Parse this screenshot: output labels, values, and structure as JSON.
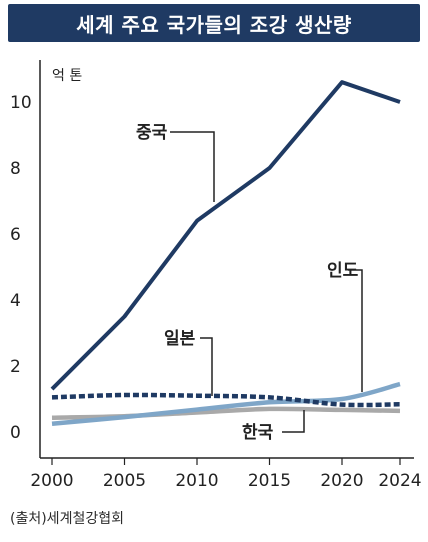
{
  "chart_data": {
    "type": "line",
    "title": "세계 주요 국가들의 조강 생산량",
    "unit_label": "억 톤",
    "x": [
      2000,
      2005,
      2010,
      2015,
      2020,
      2024
    ],
    "xticks": [
      "2000",
      "2005",
      "2010",
      "2015",
      "2020",
      "2024"
    ],
    "yticks": [
      "0",
      "2",
      "4",
      "6",
      "8",
      "10"
    ],
    "xlim": [
      2000,
      2024
    ],
    "ylim": [
      0,
      11
    ],
    "grid": false,
    "legend": "inline-labels",
    "series": [
      {
        "name": "중국",
        "color": "#1f3a63",
        "style": "solid",
        "values": [
          1.3,
          3.5,
          6.4,
          8.0,
          10.6,
          10.0
        ]
      },
      {
        "name": "인도",
        "color": "#7fa6c8",
        "style": "solid",
        "values": [
          0.25,
          0.45,
          0.68,
          0.9,
          1.0,
          1.45
        ]
      },
      {
        "name": "일본",
        "color": "#1f3a63",
        "style": "dashed",
        "values": [
          1.05,
          1.12,
          1.1,
          1.05,
          0.83,
          0.84
        ]
      },
      {
        "name": "한국",
        "color": "#a9a9a9",
        "style": "solid",
        "values": [
          0.43,
          0.48,
          0.59,
          0.7,
          0.67,
          0.64
        ]
      }
    ]
  },
  "source_label": "(출처)세계철강협회"
}
